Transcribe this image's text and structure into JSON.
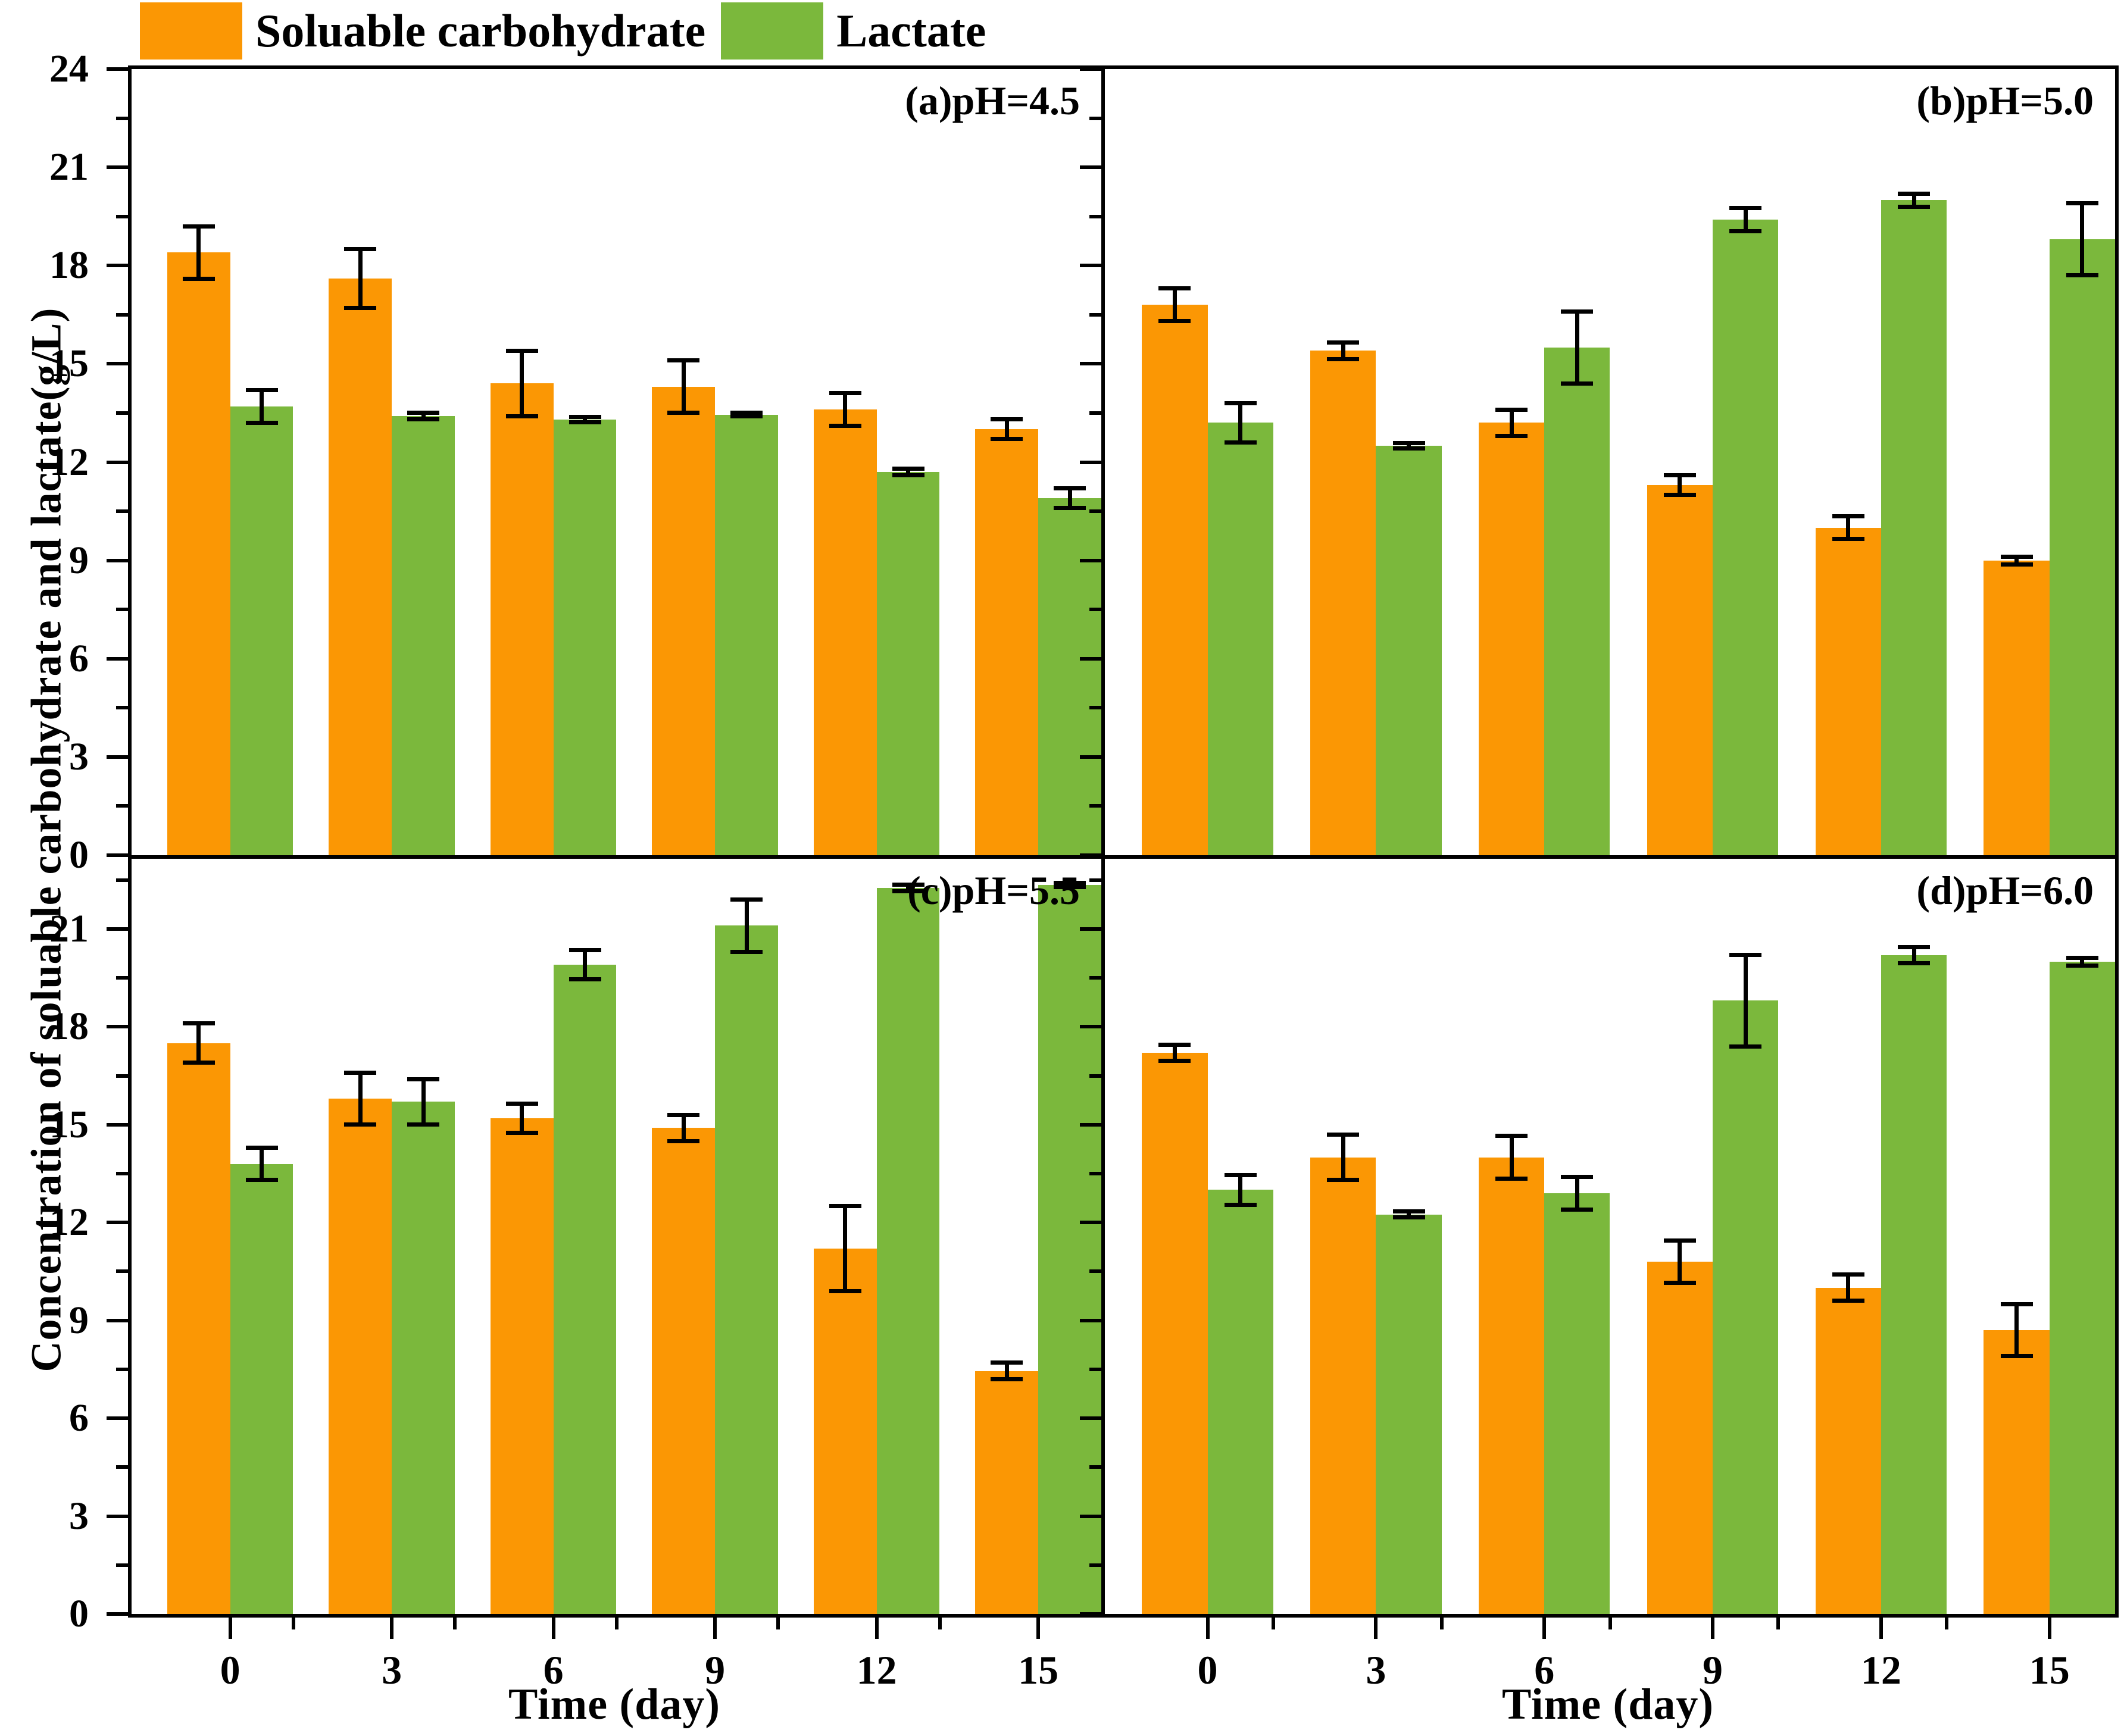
{
  "legend": {
    "items": [
      {
        "label": "Soluable carbohydrate",
        "color": "#FB9704"
      },
      {
        "label": "Lactate",
        "color": "#7BB83C"
      }
    ]
  },
  "axes": {
    "ylabel": "Concentration of soluable carbohydrate and lactate(g/L)",
    "xlabel": "Time (day)",
    "yticks": [
      0,
      3,
      6,
      9,
      12,
      15,
      18,
      21,
      24
    ],
    "minor_tick_step": 1.5,
    "ylim_top": [
      0,
      24
    ],
    "ylim_bottom": [
      0,
      23.15
    ]
  },
  "chart_data": {
    "type": "bar",
    "categories": [
      "0",
      "3",
      "6",
      "9",
      "12",
      "15"
    ],
    "xlabel": "Time (day)",
    "ylabel": "Concentration of soluable carbohydrate and lactate(g/L)",
    "legend_position": "top-left",
    "grid": false,
    "error_bars": true,
    "panels": [
      {
        "id": "a",
        "label": "(a)pH=4.5",
        "series": [
          {
            "name": "Soluable carbohydrate",
            "values": [
              18.4,
              17.6,
              14.4,
              14.3,
              13.6,
              13.0
            ],
            "errors": [
              0.8,
              0.9,
              1.0,
              0.8,
              0.5,
              0.3
            ]
          },
          {
            "name": "Lactate",
            "values": [
              13.7,
              13.4,
              13.3,
              13.45,
              11.7,
              10.9
            ],
            "errors": [
              0.5,
              0.1,
              0.08,
              0.06,
              0.1,
              0.3
            ]
          }
        ]
      },
      {
        "id": "b",
        "label": "(b)pH=5.0",
        "series": [
          {
            "name": "Soluable carbohydrate",
            "values": [
              16.8,
              15.4,
              13.2,
              11.3,
              10.0,
              9.0
            ],
            "errors": [
              0.5,
              0.25,
              0.4,
              0.3,
              0.35,
              0.12
            ]
          },
          {
            "name": "Lactate",
            "values": [
              13.2,
              12.5,
              15.5,
              19.4,
              20.0,
              18.8
            ],
            "errors": [
              0.6,
              0.08,
              1.1,
              0.35,
              0.2,
              1.1
            ]
          }
        ]
      },
      {
        "id": "c",
        "label": "(c)pH=5.5",
        "series": [
          {
            "name": "Soluable carbohydrate",
            "values": [
              17.5,
              15.8,
              15.2,
              14.9,
              11.2,
              7.45
            ],
            "errors": [
              0.6,
              0.8,
              0.45,
              0.4,
              1.3,
              0.25
            ]
          },
          {
            "name": "Lactate",
            "values": [
              13.8,
              15.7,
              19.9,
              21.1,
              22.25,
              22.35
            ],
            "errors": [
              0.5,
              0.7,
              0.45,
              0.8,
              0.1,
              0.06
            ]
          }
        ]
      },
      {
        "id": "d",
        "label": "(d)pH=6.0",
        "series": [
          {
            "name": "Soluable carbohydrate",
            "values": [
              17.2,
              14.0,
              14.0,
              10.8,
              10.0,
              8.7
            ],
            "errors": [
              0.25,
              0.7,
              0.65,
              0.65,
              0.4,
              0.8
            ]
          },
          {
            "name": "Lactate",
            "values": [
              13.0,
              12.25,
              12.9,
              18.8,
              20.2,
              20.0
            ],
            "errors": [
              0.45,
              0.1,
              0.5,
              1.4,
              0.25,
              0.12
            ]
          }
        ]
      }
    ]
  }
}
